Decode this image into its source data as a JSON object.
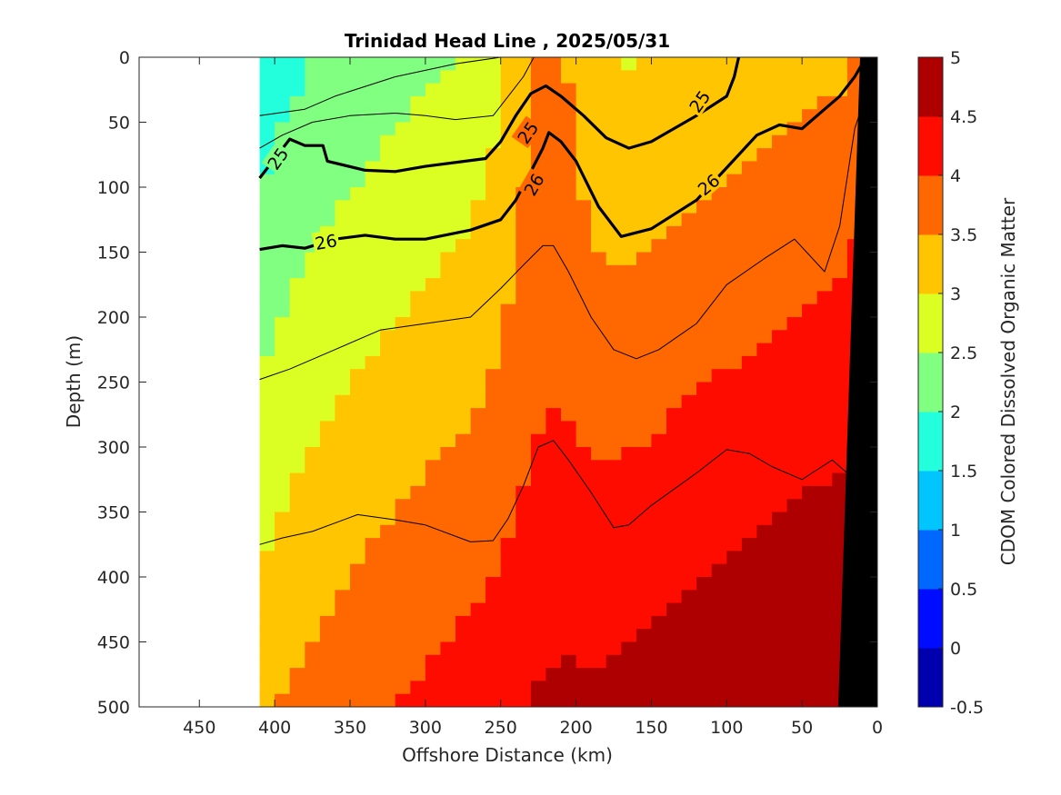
{
  "chart_data": {
    "type": "contour",
    "title": "Trinidad Head Line , 2025/05/31",
    "xlabel": "Offshore Distance (km)",
    "ylabel": "Depth (m)",
    "colorbar_label": "CDOM Colored Dissolved Organic Matter",
    "xlim": [
      490,
      0
    ],
    "ylim": [
      0,
      500
    ],
    "x_reversed": true,
    "y_reversed": true,
    "x_ticks": [
      450,
      400,
      350,
      300,
      250,
      200,
      150,
      100,
      50,
      0
    ],
    "y_ticks": [
      0,
      50,
      100,
      150,
      200,
      250,
      300,
      350,
      400,
      450,
      500
    ],
    "colorbar_range": [
      -0.5,
      5
    ],
    "colorbar_ticks": [
      -0.5,
      0,
      0.5,
      1,
      1.5,
      2,
      2.5,
      3,
      3.5,
      4,
      4.5,
      5
    ],
    "colormap": "jet",
    "data_start_km": 410,
    "contour_labels": [
      "25",
      "26"
    ],
    "contours": [
      {
        "level": "25",
        "bold": true,
        "points": [
          [
            410,
            93
          ],
          [
            390,
            63
          ],
          [
            380,
            68
          ],
          [
            368,
            68
          ],
          [
            365,
            80
          ],
          [
            340,
            87
          ],
          [
            320,
            88
          ],
          [
            300,
            84
          ],
          [
            260,
            78
          ],
          [
            250,
            65
          ],
          [
            240,
            45
          ],
          [
            230,
            28
          ],
          [
            220,
            22
          ],
          [
            210,
            30
          ],
          [
            195,
            45
          ],
          [
            180,
            62
          ],
          [
            165,
            70
          ],
          [
            150,
            65
          ],
          [
            120,
            45
          ],
          [
            100,
            30
          ],
          [
            95,
            15
          ],
          [
            92,
            0
          ]
        ]
      },
      {
        "level": "26",
        "bold": true,
        "points": [
          [
            410,
            148
          ],
          [
            395,
            145
          ],
          [
            380,
            147
          ],
          [
            360,
            140
          ],
          [
            340,
            137
          ],
          [
            320,
            140
          ],
          [
            300,
            140
          ],
          [
            270,
            133
          ],
          [
            250,
            125
          ],
          [
            240,
            110
          ],
          [
            230,
            88
          ],
          [
            222,
            70
          ],
          [
            218,
            58
          ],
          [
            210,
            65
          ],
          [
            200,
            80
          ],
          [
            185,
            115
          ],
          [
            170,
            138
          ],
          [
            150,
            132
          ],
          [
            120,
            110
          ],
          [
            100,
            85
          ],
          [
            80,
            60
          ],
          [
            65,
            52
          ],
          [
            50,
            55
          ],
          [
            35,
            40
          ],
          [
            25,
            30
          ],
          [
            15,
            15
          ],
          [
            10,
            5
          ]
        ]
      },
      {
        "level": "",
        "bold": false,
        "points": [
          [
            410,
            375
          ],
          [
            395,
            370
          ],
          [
            375,
            365
          ],
          [
            345,
            352
          ],
          [
            320,
            356
          ],
          [
            300,
            360
          ],
          [
            270,
            373
          ],
          [
            255,
            372
          ],
          [
            245,
            355
          ],
          [
            235,
            330
          ],
          [
            225,
            300
          ],
          [
            215,
            295
          ],
          [
            205,
            310
          ],
          [
            190,
            335
          ],
          [
            175,
            362
          ],
          [
            165,
            360
          ],
          [
            150,
            345
          ],
          [
            120,
            320
          ],
          [
            100,
            302
          ],
          [
            85,
            305
          ],
          [
            70,
            315
          ],
          [
            50,
            325
          ],
          [
            30,
            310
          ],
          [
            20,
            320
          ]
        ]
      },
      {
        "level": "",
        "bold": false,
        "points": [
          [
            410,
            248
          ],
          [
            390,
            240
          ],
          [
            360,
            225
          ],
          [
            330,
            210
          ],
          [
            300,
            205
          ],
          [
            270,
            200
          ],
          [
            250,
            178
          ],
          [
            235,
            160
          ],
          [
            222,
            145
          ],
          [
            215,
            145
          ],
          [
            205,
            165
          ],
          [
            190,
            200
          ],
          [
            175,
            225
          ],
          [
            160,
            232
          ],
          [
            145,
            225
          ],
          [
            120,
            205
          ],
          [
            100,
            175
          ],
          [
            75,
            155
          ],
          [
            55,
            140
          ],
          [
            35,
            165
          ],
          [
            25,
            130
          ],
          [
            15,
            55
          ],
          [
            8,
            30
          ]
        ]
      },
      {
        "level": "",
        "bold": false,
        "points": [
          [
            410,
            45
          ],
          [
            380,
            40
          ],
          [
            360,
            30
          ],
          [
            320,
            15
          ],
          [
            280,
            5
          ],
          [
            250,
            0
          ]
        ]
      },
      {
        "level": "",
        "bold": false,
        "points": [
          [
            410,
            70
          ],
          [
            395,
            60
          ],
          [
            375,
            50
          ],
          [
            350,
            45
          ],
          [
            320,
            43
          ],
          [
            300,
            45
          ],
          [
            280,
            48
          ],
          [
            255,
            45
          ],
          [
            245,
            30
          ],
          [
            235,
            15
          ],
          [
            228,
            0
          ]
        ]
      }
    ]
  }
}
